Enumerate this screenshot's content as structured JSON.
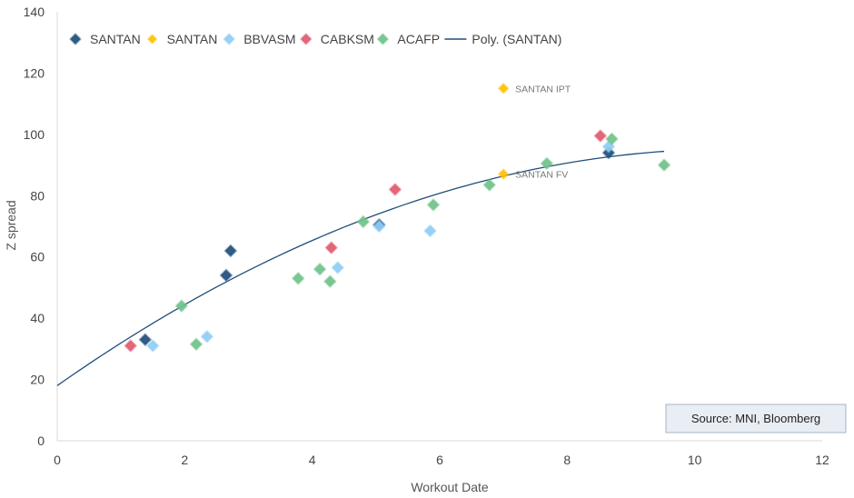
{
  "chart_data": {
    "type": "scatter",
    "title": "",
    "xlabel": "Workout Date",
    "ylabel": "Z spread",
    "xlim": [
      0,
      12
    ],
    "ylim": [
      0,
      140
    ],
    "xticks": [
      0,
      2,
      4,
      6,
      8,
      10,
      12
    ],
    "yticks": [
      0,
      20,
      40,
      60,
      80,
      100,
      120,
      140
    ],
    "grid": false,
    "legend_position": "top",
    "series": [
      {
        "name": "SANTAN",
        "color": "#1f4e79",
        "marker": "diamond",
        "points": [
          [
            1.38,
            33
          ],
          [
            2.65,
            54
          ],
          [
            2.72,
            62
          ],
          [
            5.05,
            70.5
          ],
          [
            8.65,
            94
          ]
        ]
      },
      {
        "name": "SANTAN",
        "color": "#ffc000",
        "marker": "diamond",
        "points": [
          [
            7.0,
            115
          ],
          [
            7.0,
            87
          ]
        ]
      },
      {
        "name": "BBVASM",
        "color": "#8fcdf5",
        "marker": "diamond",
        "points": [
          [
            1.5,
            31
          ],
          [
            2.35,
            34
          ],
          [
            4.4,
            56.5
          ],
          [
            5.05,
            70
          ],
          [
            5.85,
            68.5
          ],
          [
            8.65,
            96
          ]
        ]
      },
      {
        "name": "CABKSM",
        "color": "#e05a6d",
        "marker": "diamond",
        "points": [
          [
            1.15,
            31
          ],
          [
            4.3,
            63
          ],
          [
            5.3,
            82
          ],
          [
            8.52,
            99.5
          ]
        ]
      },
      {
        "name": "ACAFP",
        "color": "#70c28a",
        "marker": "diamond",
        "points": [
          [
            1.95,
            44
          ],
          [
            2.18,
            31.5
          ],
          [
            3.78,
            53
          ],
          [
            4.12,
            56
          ],
          [
            4.28,
            52
          ],
          [
            4.8,
            71.5
          ],
          [
            5.9,
            77
          ],
          [
            6.78,
            83.5
          ],
          [
            7.68,
            90.5
          ],
          [
            8.7,
            98.5
          ],
          [
            9.52,
            90
          ]
        ]
      }
    ],
    "trendline": {
      "name": "Poly. (SANTAN)",
      "color": "#1f4e79",
      "x_range": [
        0,
        9.52
      ],
      "coefficients": [
        18,
        14.6,
        -0.69
      ]
    },
    "annotations": [
      {
        "text": "SANTAN IPT",
        "x": 7.0,
        "y": 115
      },
      {
        "text": "SANTAN FV",
        "x": 7.0,
        "y": 87
      }
    ],
    "source_note": "Source: MNI, Bloomberg"
  }
}
